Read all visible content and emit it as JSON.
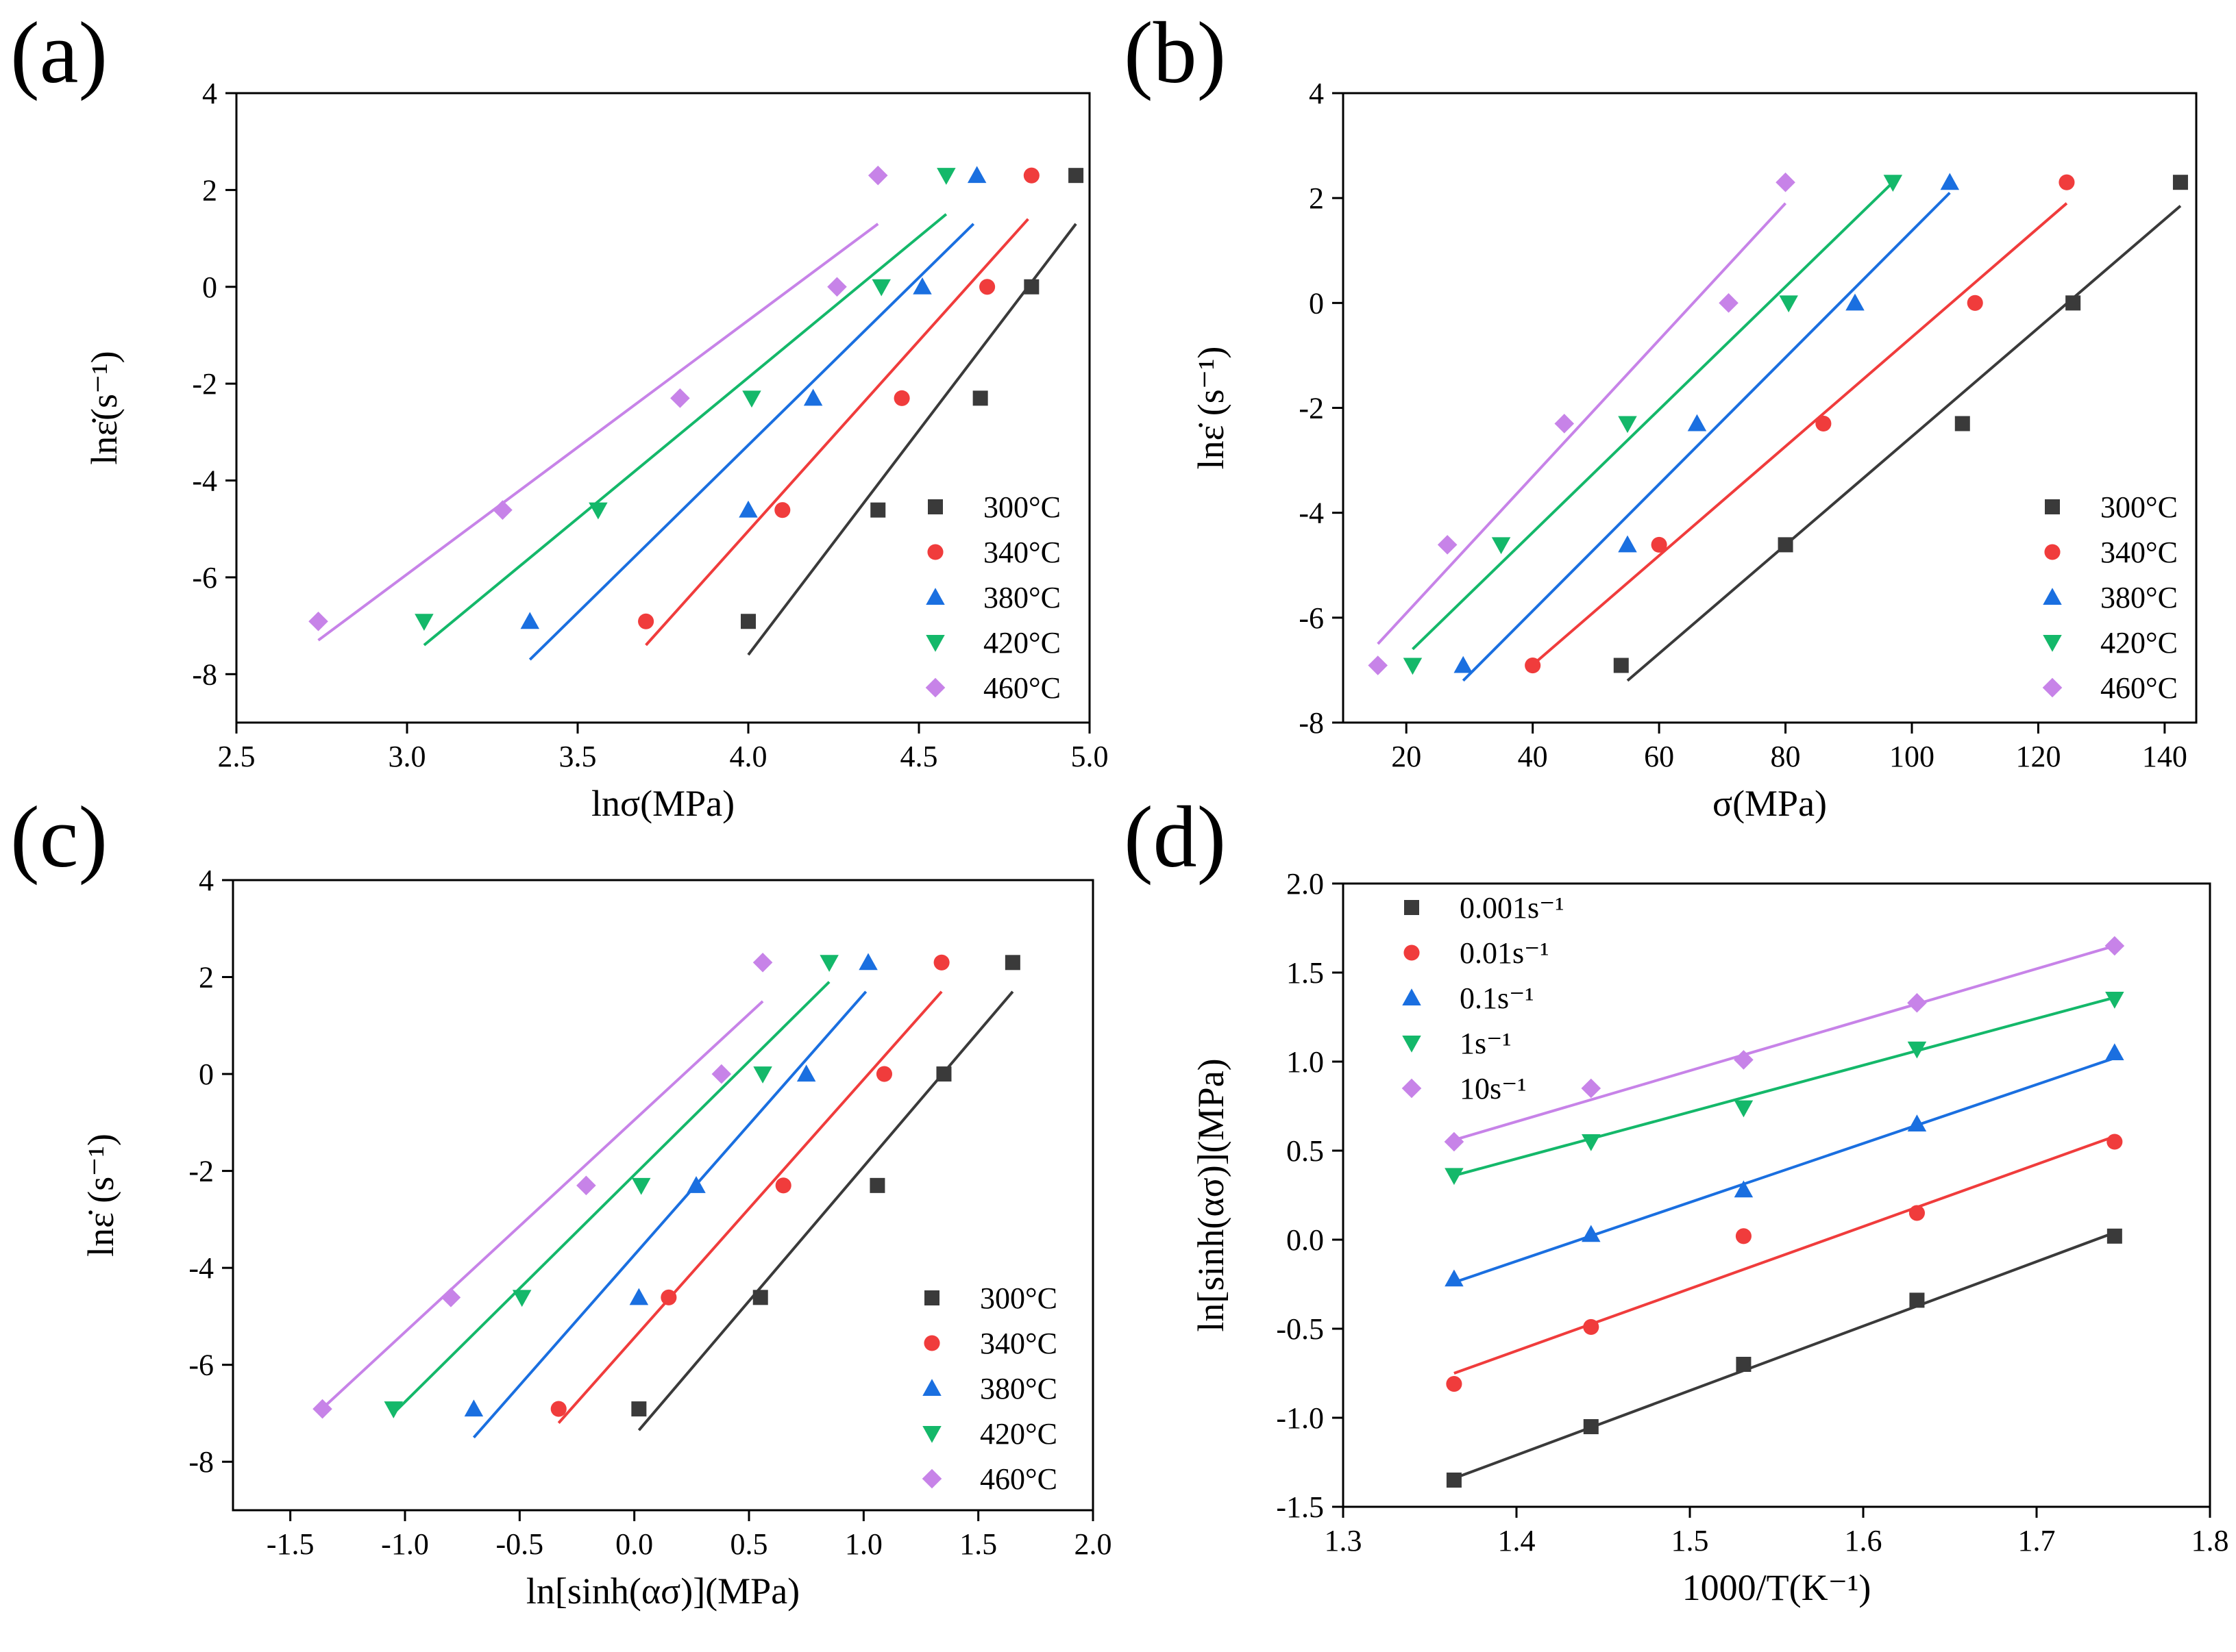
{
  "colors": {
    "s1": "#3a3a3a",
    "s2": "#f03c3c",
    "s3": "#1a6fe0",
    "s4": "#14b86a",
    "s5": "#c783e8"
  },
  "chart_data": [
    {
      "id": "a",
      "type": "scatter",
      "panel_label": "(a)",
      "xlabel": "lnσ(MPa)",
      "ylabel": "lnε̇(s⁻¹)",
      "xlim": [
        2.5,
        5.0
      ],
      "ylim": [
        -9,
        4
      ],
      "xticks": [
        2.5,
        3.0,
        3.5,
        4.0,
        4.5,
        5.0
      ],
      "xtick_labels": [
        "2.5",
        "3.0",
        "3.5",
        "4.0",
        "4.5",
        "5.0"
      ],
      "yticks": [
        -8,
        -6,
        -4,
        -2,
        0,
        2,
        4
      ],
      "ytick_labels": [
        "-8",
        "-6",
        "-4",
        "-2",
        "0",
        "2",
        "4"
      ],
      "legend_position": "lower-right",
      "series": [
        {
          "name": "300°C",
          "marker": "square",
          "color_key": "s1",
          "x": [
            4.0,
            4.38,
            4.68,
            4.83,
            4.96
          ],
          "y": [
            -6.91,
            -4.61,
            -2.3,
            0.0,
            2.3
          ],
          "fit": [
            [
              4.0,
              -7.6
            ],
            [
              4.96,
              1.3
            ]
          ]
        },
        {
          "name": "340°C",
          "marker": "circle",
          "color_key": "s2",
          "x": [
            3.7,
            4.1,
            4.45,
            4.7,
            4.83
          ],
          "y": [
            -6.91,
            -4.61,
            -2.3,
            0.0,
            2.3
          ],
          "fit": [
            [
              3.7,
              -7.4
            ],
            [
              4.82,
              1.4
            ]
          ]
        },
        {
          "name": "380°C",
          "marker": "triangle-up",
          "color_key": "s3",
          "x": [
            3.36,
            4.0,
            4.19,
            4.51,
            4.67
          ],
          "y": [
            -6.91,
            -4.61,
            -2.3,
            0.0,
            2.3
          ],
          "fit": [
            [
              3.36,
              -7.7
            ],
            [
              4.66,
              1.3
            ]
          ]
        },
        {
          "name": "420°C",
          "marker": "triangle-down",
          "color_key": "s4",
          "x": [
            3.05,
            3.56,
            4.01,
            4.39,
            4.58
          ],
          "y": [
            -6.91,
            -4.61,
            -2.3,
            0.0,
            2.3
          ],
          "fit": [
            [
              3.05,
              -7.4
            ],
            [
              4.58,
              1.5
            ]
          ]
        },
        {
          "name": "460°C",
          "marker": "diamond",
          "color_key": "s5",
          "x": [
            2.74,
            3.28,
            3.8,
            4.26,
            4.38
          ],
          "y": [
            -6.91,
            -4.61,
            -2.3,
            0.0,
            2.3
          ],
          "fit": [
            [
              2.74,
              -7.3
            ],
            [
              4.38,
              1.3
            ]
          ]
        }
      ]
    },
    {
      "id": "b",
      "type": "scatter",
      "panel_label": "(b)",
      "xlabel": "σ(MPa)",
      "ylabel": "lnε̇ (s⁻¹)",
      "xlim": [
        10,
        145
      ],
      "ylim": [
        -8,
        4
      ],
      "xticks": [
        20,
        40,
        60,
        80,
        100,
        120,
        140
      ],
      "xtick_labels": [
        "20",
        "40",
        "60",
        "80",
        "100",
        "120",
        "140"
      ],
      "yticks": [
        -8,
        -6,
        -4,
        -2,
        0,
        2,
        4
      ],
      "ytick_labels": [
        "-8",
        "-6",
        "-4",
        "-2",
        "0",
        "2",
        "4"
      ],
      "legend_position": "lower-right",
      "series": [
        {
          "name": "300°C",
          "marker": "square",
          "color_key": "s1",
          "x": [
            54,
            80,
            108,
            125.5,
            142.5
          ],
          "y": [
            -6.91,
            -4.61,
            -2.3,
            0.0,
            2.3
          ],
          "fit": [
            [
              55,
              -7.2
            ],
            [
              142.5,
              1.85
            ]
          ]
        },
        {
          "name": "340°C",
          "marker": "circle",
          "color_key": "s2",
          "x": [
            40,
            60,
            86,
            110,
            124.5
          ],
          "y": [
            -6.91,
            -4.61,
            -2.3,
            0.0,
            2.3
          ],
          "fit": [
            [
              40,
              -6.9
            ],
            [
              124.5,
              1.9
            ]
          ]
        },
        {
          "name": "380°C",
          "marker": "triangle-up",
          "color_key": "s3",
          "x": [
            29,
            55,
            66,
            91,
            106
          ],
          "y": [
            -6.91,
            -4.61,
            -2.3,
            0.0,
            2.3
          ],
          "fit": [
            [
              29,
              -7.2
            ],
            [
              106,
              2.1
            ]
          ]
        },
        {
          "name": "420°C",
          "marker": "triangle-down",
          "color_key": "s4",
          "x": [
            21,
            35,
            55,
            80.5,
            97
          ],
          "y": [
            -6.91,
            -4.61,
            -2.3,
            0.0,
            2.3
          ],
          "fit": [
            [
              21,
              -6.6
            ],
            [
              97,
              2.3
            ]
          ]
        },
        {
          "name": "460°C",
          "marker": "diamond",
          "color_key": "s5",
          "x": [
            15.5,
            26.5,
            45,
            71,
            80
          ],
          "y": [
            -6.91,
            -4.61,
            -2.3,
            0.0,
            2.3
          ],
          "fit": [
            [
              15.5,
              -6.5
            ],
            [
              80,
              1.9
            ]
          ]
        }
      ]
    },
    {
      "id": "c",
      "type": "scatter",
      "panel_label": "(c)",
      "xlabel": "ln[sinh(ασ)](MPa)",
      "ylabel": "lnε̇ (s⁻¹)",
      "xlim": [
        -1.75,
        2.0
      ],
      "ylim": [
        -9,
        4
      ],
      "xticks": [
        -1.5,
        -1.0,
        -0.5,
        0.0,
        0.5,
        1.0,
        1.5,
        2.0
      ],
      "xtick_labels": [
        "-1.5",
        "-1.0",
        "-0.5",
        "0.0",
        "0.5",
        "1.0",
        "1.5",
        "2.0"
      ],
      "yticks": [
        -8,
        -6,
        -4,
        -2,
        0,
        2,
        4
      ],
      "ytick_labels": [
        "-8",
        "-6",
        "-4",
        "-2",
        "0",
        "2",
        "4"
      ],
      "legend_position": "lower-right",
      "series": [
        {
          "name": "300°C",
          "marker": "square",
          "color_key": "s1",
          "x": [
            0.02,
            0.55,
            1.06,
            1.35,
            1.65
          ],
          "y": [
            -6.91,
            -4.61,
            -2.3,
            0.0,
            2.3
          ],
          "fit": [
            [
              0.02,
              -7.35
            ],
            [
              1.65,
              1.7
            ]
          ]
        },
        {
          "name": "340°C",
          "marker": "circle",
          "color_key": "s2",
          "x": [
            -0.33,
            0.15,
            0.65,
            1.09,
            1.34
          ],
          "y": [
            -6.91,
            -4.61,
            -2.3,
            0.0,
            2.3
          ],
          "fit": [
            [
              -0.33,
              -7.2
            ],
            [
              1.34,
              1.7
            ]
          ]
        },
        {
          "name": "380°C",
          "marker": "triangle-up",
          "color_key": "s3",
          "x": [
            -0.7,
            0.02,
            0.27,
            0.75,
            1.02
          ],
          "y": [
            -6.91,
            -4.61,
            -2.3,
            0.0,
            2.3
          ],
          "fit": [
            [
              -0.7,
              -7.5
            ],
            [
              1.01,
              1.7
            ]
          ]
        },
        {
          "name": "420°C",
          "marker": "triangle-down",
          "color_key": "s4",
          "x": [
            -1.05,
            -0.49,
            0.03,
            0.56,
            0.85
          ],
          "y": [
            -6.91,
            -4.61,
            -2.3,
            0.0,
            2.3
          ],
          "fit": [
            [
              -1.05,
              -7.0
            ],
            [
              0.85,
              1.9
            ]
          ]
        },
        {
          "name": "460°C",
          "marker": "diamond",
          "color_key": "s5",
          "x": [
            -1.36,
            -0.8,
            -0.21,
            0.38,
            0.56
          ],
          "y": [
            -6.91,
            -4.61,
            -2.3,
            0.0,
            2.3
          ],
          "fit": [
            [
              -1.36,
              -6.9
            ],
            [
              0.56,
              1.5
            ]
          ]
        }
      ]
    },
    {
      "id": "d",
      "type": "scatter",
      "panel_label": "(d)",
      "xlabel": "1000/T(K⁻¹)",
      "ylabel": "ln[sinh(ασ)](MPa)",
      "xlim": [
        1.3,
        1.8
      ],
      "ylim": [
        -1.5,
        2.0
      ],
      "xticks": [
        1.3,
        1.4,
        1.5,
        1.6,
        1.7,
        1.8
      ],
      "xtick_labels": [
        "1.3",
        "1.4",
        "1.5",
        "1.6",
        "1.7",
        "1.8"
      ],
      "yticks": [
        -1.5,
        -1.0,
        -0.5,
        0.0,
        0.5,
        1.0,
        1.5,
        2.0
      ],
      "ytick_labels": [
        "-1.5",
        "-1.0",
        "-0.5",
        "0.0",
        "0.5",
        "1.0",
        "1.5",
        "2.0"
      ],
      "legend_position": "top-left",
      "series": [
        {
          "name": "0.001s⁻¹",
          "marker": "square",
          "color_key": "s1",
          "x": [
            1.364,
            1.443,
            1.531,
            1.631,
            1.745
          ],
          "y": [
            -1.35,
            -1.05,
            -0.7,
            -0.34,
            0.02
          ],
          "fit": [
            [
              1.364,
              -1.34
            ],
            [
              1.745,
              0.04
            ]
          ]
        },
        {
          "name": "0.01s⁻¹",
          "marker": "circle",
          "color_key": "s2",
          "x": [
            1.364,
            1.443,
            1.531,
            1.631,
            1.745
          ],
          "y": [
            -0.81,
            -0.49,
            0.02,
            0.15,
            0.55
          ],
          "fit": [
            [
              1.364,
              -0.75
            ],
            [
              1.745,
              0.58
            ]
          ]
        },
        {
          "name": "0.1s⁻¹",
          "marker": "triangle-up",
          "color_key": "s3",
          "x": [
            1.364,
            1.443,
            1.531,
            1.631,
            1.745
          ],
          "y": [
            -0.22,
            0.03,
            0.28,
            0.65,
            1.05
          ],
          "fit": [
            [
              1.364,
              -0.24
            ],
            [
              1.745,
              1.02
            ]
          ]
        },
        {
          "name": "1s⁻¹",
          "marker": "triangle-down",
          "color_key": "s4",
          "x": [
            1.364,
            1.443,
            1.531,
            1.631,
            1.745
          ],
          "y": [
            0.36,
            0.55,
            0.74,
            1.07,
            1.35
          ],
          "fit": [
            [
              1.364,
              0.36
            ],
            [
              1.745,
              1.36
            ]
          ]
        },
        {
          "name": "10s⁻¹",
          "marker": "diamond",
          "color_key": "s5",
          "x": [
            1.364,
            1.443,
            1.531,
            1.631,
            1.745
          ],
          "y": [
            0.55,
            0.85,
            1.01,
            1.33,
            1.65
          ],
          "fit": [
            [
              1.364,
              0.56
            ],
            [
              1.745,
              1.65
            ]
          ]
        }
      ]
    }
  ]
}
